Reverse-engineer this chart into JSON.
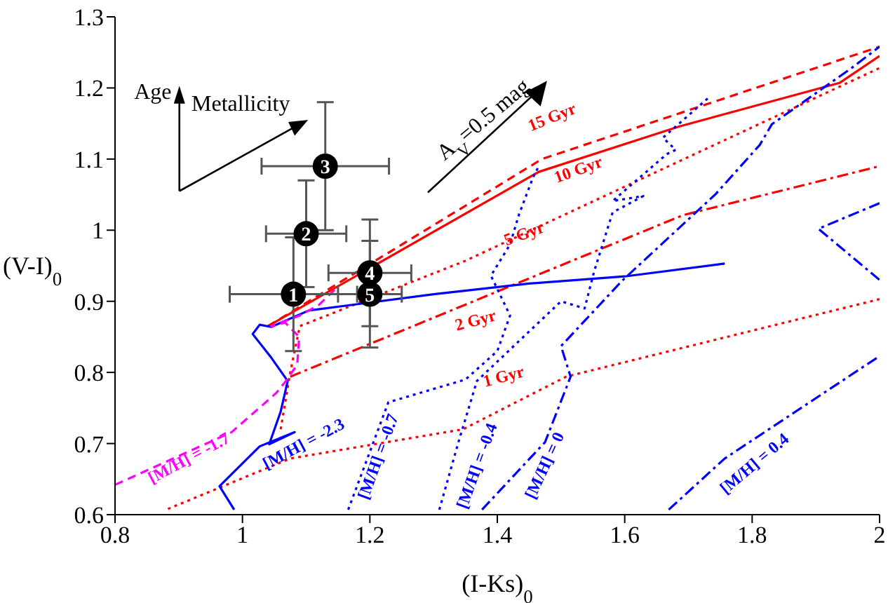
{
  "chart_data": {
    "type": "line",
    "xlabel": "(I-Ks)$_{0}$",
    "ylabel": "(V-I)$_{0}$",
    "xlim": [
      0.8,
      2
    ],
    "ylim": [
      0.6,
      1.3
    ],
    "xticks": [
      0.8,
      1,
      1.2,
      1.4,
      1.6,
      1.8,
      2
    ],
    "yticks": [
      0.6,
      0.7,
      0.8,
      0.9,
      1,
      1.1,
      1.2,
      1.3
    ],
    "marker": "none",
    "annotations": [
      "Age",
      "Metallicity",
      "A$_{V}$=0.5 mag",
      {
        "text": "1",
        "x": 1.08,
        "y": 0.91
      },
      {
        "text": "2",
        "x": 1.1,
        "y": 0.995
      },
      {
        "text": "3",
        "x": 1.13,
        "y": 1.09
      },
      {
        "text": "4",
        "x": 1.2,
        "y": 0.94
      },
      {
        "text": "5",
        "x": 1.2,
        "y": 0.91
      }
    ],
    "series": [
      {
        "name": "15 Gyr",
        "color": "#ff0000",
        "line_style": "dashed",
        "x": [
          1.04,
          1.47,
          2.0
        ],
        "values": [
          0.865,
          1.1,
          1.258
        ]
      },
      {
        "name": "10 Gyr",
        "color": "#ff0000",
        "line_style": "solid",
        "x": [
          1.04,
          1.465,
          1.686,
          1.937,
          2.0
        ],
        "values": [
          0.865,
          1.082,
          1.146,
          1.207,
          1.245
        ]
      },
      {
        "name": "5 Gyr",
        "color": "#ff0000",
        "line_style": "dotted",
        "x": [
          1.06,
          1.075,
          1.09,
          1.35,
          2.0
        ],
        "values": [
          0.72,
          0.8,
          0.865,
          0.957,
          1.228
        ]
      },
      {
        "name": "2 Gyr",
        "color": "#ff0000",
        "line_style": "dashdot",
        "x": [
          1.075,
          1.691,
          2.0
        ],
        "values": [
          0.794,
          1.021,
          1.09
        ]
      },
      {
        "name": "1 Gyr",
        "color": "#ff0000",
        "line_style": "dotted",
        "x": [
          0.883,
          1.075,
          1.346,
          1.508,
          2.0
        ],
        "values": [
          0.608,
          0.679,
          0.72,
          0.794,
          0.903
        ]
      },
      {
        "name": "[M/H] = -2.3",
        "color": "#0000ff",
        "line_style": "solid",
        "x": [
          0.987,
          0.964,
          1.027,
          1.082,
          1.042,
          1.06,
          1.071,
          1.045,
          1.016,
          1.027,
          1.045,
          1.104,
          1.3,
          1.45,
          1.6,
          1.757
        ],
        "values": [
          0.607,
          0.64,
          0.696,
          0.716,
          0.699,
          0.745,
          0.788,
          0.821,
          0.854,
          0.867,
          0.864,
          0.887,
          0.91,
          0.925,
          0.935,
          0.953
        ]
      },
      {
        "name": "[M/H] = -1.7",
        "color": "#ff00ff",
        "line_style": "dashed",
        "x": [
          0.8,
          0.983,
          1.053,
          1.07,
          1.086,
          1.089,
          1.067,
          1.045,
          1.09,
          1.12,
          1.148
        ],
        "values": [
          0.642,
          0.716,
          0.771,
          0.79,
          0.811,
          0.85,
          0.87,
          0.865,
          0.88,
          0.895,
          0.919
        ]
      },
      {
        "name": "[M/H] = -0.7",
        "color": "#0000ff",
        "line_style": "dotted",
        "x": [
          1.166,
          1.229,
          1.35,
          1.4,
          1.42,
          1.39,
          1.42,
          1.434,
          1.456,
          1.465
        ],
        "values": [
          0.607,
          0.758,
          0.79,
          0.83,
          0.88,
          0.936,
          0.98,
          1.022,
          1.074,
          1.09
        ]
      },
      {
        "name": "[M/H] = -0.4",
        "color": "#0000ff",
        "line_style": "dotted",
        "x": [
          1.309,
          1.339,
          1.368,
          1.5,
          1.537,
          1.552,
          1.581,
          1.629,
          1.581,
          1.666,
          1.68,
          1.66,
          1.735
        ],
        "values": [
          0.607,
          0.702,
          0.788,
          0.9,
          0.89,
          0.942,
          1.025,
          1.048,
          1.041,
          1.107,
          1.113,
          1.13,
          1.189
        ]
      },
      {
        "name": "[M/H] = 0",
        "color": "#0000ff",
        "line_style": "dashdot",
        "x": [
          1.376,
          1.475,
          1.515,
          1.5,
          1.596,
          1.743,
          1.812,
          1.831,
          1.956,
          2.0
        ],
        "values": [
          0.607,
          0.702,
          0.794,
          0.837,
          0.929,
          1.051,
          1.12,
          1.149,
          1.228,
          1.258
        ]
      },
      {
        "name": "[M/H] = 0.4",
        "color": "#0000ff",
        "line_style": "dashdot",
        "x": [
          1.669,
          1.757,
          2.0,
          null,
          2.0,
          1.904,
          2.0
        ],
        "values": [
          0.607,
          0.679,
          0.823,
          null,
          1.038,
          1.002,
          0.93
        ]
      },
      {
        "type": "scatter",
        "color": "#000000",
        "marker": "circle",
        "x": [
          1.08,
          1.1,
          1.13,
          1.2,
          1.2
        ],
        "values": [
          0.91,
          0.995,
          1.09,
          0.94,
          0.91
        ],
        "errors": [
          0.08,
          0.075,
          0.09,
          0.075,
          0.075
        ],
        "xerrors": [
          0.1,
          0.063,
          0.1,
          0.065,
          0.05
        ]
      }
    ]
  }
}
